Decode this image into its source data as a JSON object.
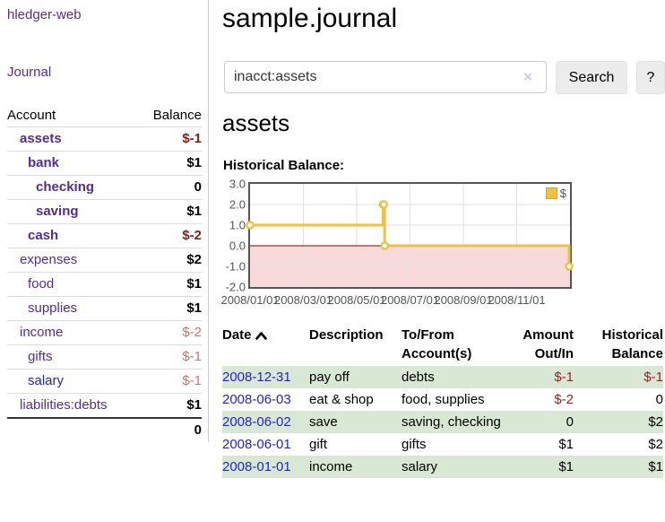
{
  "colors": {
    "link_purple": "#552d90",
    "link_blue": "#2323cc",
    "negative_strong": "#8e1a1a",
    "negative_muted": "#c47777",
    "row_green": "#d9e8d4",
    "chart_line": "#edc240",
    "chart_negative_fill": "#f9dada",
    "chart_zero_line": "#8b0000",
    "chart_border": "#545454"
  },
  "sidebar": {
    "brand": "hledger-web",
    "nav": {
      "journal": "Journal"
    },
    "header": {
      "account": "Account",
      "balance": "Balance"
    },
    "accounts": [
      {
        "name": "assets",
        "depth": 1,
        "bold": true,
        "link": "purple",
        "balance": "$-1",
        "balance_style": "neg-strong"
      },
      {
        "name": "bank",
        "depth": 2,
        "bold": true,
        "link": "purple",
        "balance": "$1",
        "balance_style": "pos"
      },
      {
        "name": "checking",
        "depth": 3,
        "bold": true,
        "link": "purple",
        "balance": "0",
        "balance_style": "pos"
      },
      {
        "name": "saving",
        "depth": 3,
        "bold": true,
        "link": "purple",
        "balance": "$1",
        "balance_style": "pos"
      },
      {
        "name": "cash",
        "depth": 2,
        "bold": true,
        "link": "purple",
        "balance": "$-2",
        "balance_style": "neg-strong"
      },
      {
        "name": "expenses",
        "depth": 1,
        "bold": false,
        "link": "purple",
        "balance": "$2",
        "balance_style": "pos"
      },
      {
        "name": "food",
        "depth": 2,
        "bold": false,
        "link": "purple",
        "balance": "$1",
        "balance_style": "pos"
      },
      {
        "name": "supplies",
        "depth": 2,
        "bold": false,
        "link": "purple",
        "balance": "$1",
        "balance_style": "pos"
      },
      {
        "name": "income",
        "depth": 1,
        "bold": false,
        "link": "purple",
        "balance": "$-2",
        "balance_style": "neg-muted"
      },
      {
        "name": "gifts",
        "depth": 2,
        "bold": false,
        "link": "purple",
        "balance": "$-1",
        "balance_style": "neg-muted"
      },
      {
        "name": "salary",
        "depth": 2,
        "bold": false,
        "link": "blue",
        "balance": "$-1",
        "balance_style": "neg-muted"
      },
      {
        "name": "liabilities:debts",
        "depth": 1,
        "bold": false,
        "link": "purple",
        "balance": "$1",
        "balance_style": "pos"
      }
    ],
    "total": "0"
  },
  "main": {
    "title": "sample.journal",
    "search": {
      "value": "inacct:assets",
      "clear_icon": "×",
      "search_button": "Search",
      "help_button": "?"
    },
    "account_heading": "assets",
    "chart_label": "Historical Balance:"
  },
  "chart_data": {
    "type": "line",
    "title": "Historical Balance",
    "step": true,
    "legend": [
      {
        "label": "$",
        "color": "#edc240"
      }
    ],
    "legend_position": "top-right",
    "grid": true,
    "ylim": [
      -2.0,
      3.0
    ],
    "xlim": [
      "2008-01-01",
      "2009-01-01"
    ],
    "y_ticks": [
      "3.0",
      "2.0",
      "1.0",
      "0.0",
      "-1.0",
      "-2.0"
    ],
    "x_ticks": [
      "2008/01/01",
      "2008/03/01",
      "2008/05/01",
      "2008/07/01",
      "2008/09/01",
      "2008/11/01"
    ],
    "series": [
      {
        "name": "$",
        "points": [
          {
            "x": "2008-01-01",
            "y": 1
          },
          {
            "x": "2008-06-01",
            "y": 2
          },
          {
            "x": "2008-06-02",
            "y": 2
          },
          {
            "x": "2008-06-03",
            "y": 0
          },
          {
            "x": "2008-12-31",
            "y": -1
          }
        ]
      }
    ],
    "negative_region_shaded": true
  },
  "table": {
    "headers": {
      "date": "Date",
      "description": "Description",
      "tofrom_line1": "To/From",
      "tofrom_line2": "Account(s)",
      "amount_line1": "Amount",
      "amount_line2": "Out/In",
      "balance_line1": "Historical",
      "balance_line2": "Balance"
    },
    "rows": [
      {
        "date": "2008-12-31",
        "description": "pay off",
        "accounts": "debts",
        "amount": "$-1",
        "amount_neg": true,
        "balance": "$-1",
        "balance_neg": true,
        "green": true
      },
      {
        "date": "2008-06-03",
        "description": "eat & shop",
        "accounts": "food, supplies",
        "amount": "$-2",
        "amount_neg": true,
        "balance": "0",
        "balance_neg": false,
        "green": false
      },
      {
        "date": "2008-06-02",
        "description": "save",
        "accounts": "saving, checking",
        "amount": "0",
        "amount_neg": false,
        "balance": "$2",
        "balance_neg": false,
        "green": true
      },
      {
        "date": "2008-06-01",
        "description": "gift",
        "accounts": "gifts",
        "amount": "$1",
        "amount_neg": false,
        "balance": "$2",
        "balance_neg": false,
        "green": false
      },
      {
        "date": "2008-01-01",
        "description": "income",
        "accounts": "salary",
        "amount": "$1",
        "amount_neg": false,
        "balance": "$1",
        "balance_neg": false,
        "green": true
      }
    ]
  }
}
